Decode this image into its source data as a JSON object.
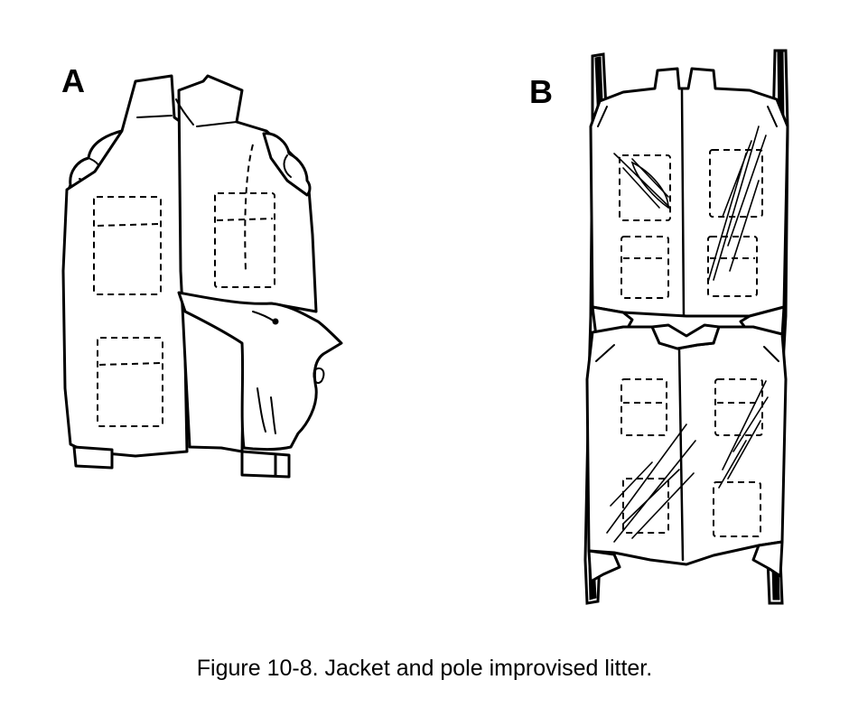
{
  "figure": {
    "panel_a_label": "A",
    "panel_b_label": "B",
    "caption": "Figure 10-8.  Jacket and pole improvised litter."
  },
  "icons": {
    "jacket_a": "jacket-sleeves-inverted-icon",
    "litter_b": "jacket-pole-litter-icon"
  }
}
